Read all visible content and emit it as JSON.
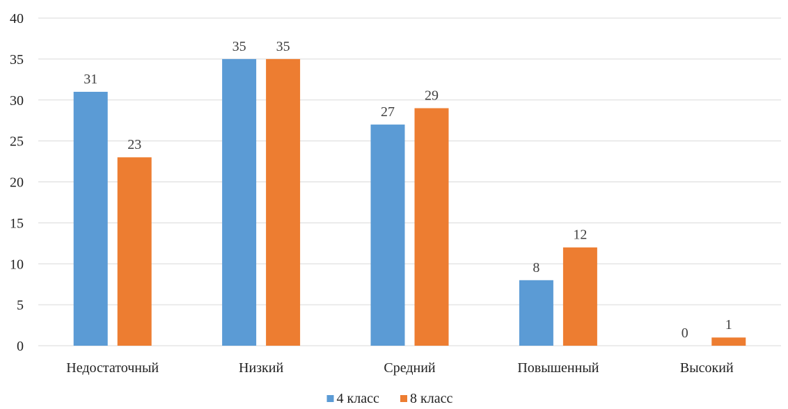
{
  "chart_data": {
    "type": "bar",
    "categories": [
      "Недостаточный",
      "Низкий",
      "Средний",
      "Повышенный",
      "Высокий"
    ],
    "series": [
      {
        "name": "4 класс",
        "values": [
          31,
          35,
          27,
          8,
          0
        ],
        "color": "#5b9bd5"
      },
      {
        "name": "8 класс",
        "values": [
          23,
          35,
          29,
          12,
          1
        ],
        "color": "#ed7d31"
      }
    ],
    "title": "",
    "xlabel": "",
    "ylabel": "",
    "ylim": [
      0,
      40
    ],
    "yticks": [
      0,
      5,
      10,
      15,
      20,
      25,
      30,
      35,
      40
    ],
    "grid": true,
    "legend_position": "bottom",
    "data_labels": true
  }
}
